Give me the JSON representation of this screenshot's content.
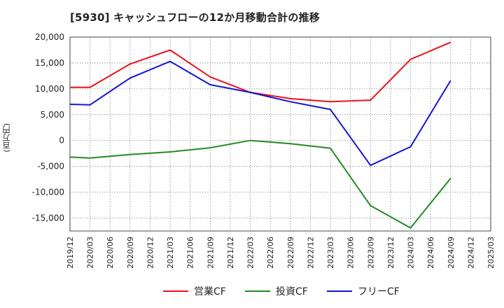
{
  "title": "[5930]  キャッシュフローの12か月移動合計の推移",
  "unit_label": "(百万円)",
  "chart_data": {
    "type": "line",
    "title": "[5930]  キャッシュフローの12か月移動合計の推移",
    "ylabel": "(百万円)",
    "xlabel": "",
    "ylim": [
      -17500,
      20000
    ],
    "yticks": [
      20000,
      15000,
      10000,
      5000,
      0,
      -5000,
      -10000,
      -15000
    ],
    "ytick_labels": [
      "20,000",
      "15,000",
      "10,000",
      "5,000",
      "0",
      "-5,000",
      "-10,000",
      "-15,000"
    ],
    "categories": [
      "2019/12",
      "2020/03",
      "2020/06",
      "2020/09",
      "2020/12",
      "2021/03",
      "2021/06",
      "2021/09",
      "2021/12",
      "2022/03",
      "2022/06",
      "2022/09",
      "2022/12",
      "2023/03",
      "2023/06",
      "2023/09",
      "2023/12",
      "2024/03",
      "2024/06",
      "2024/09",
      "2024/12",
      "2025/03"
    ],
    "grid": true,
    "legend_position": "bottom",
    "series": [
      {
        "name": "営業CF",
        "color": "#e8131a",
        "values": [
          10300,
          10300,
          null,
          14800,
          null,
          17500,
          null,
          12300,
          null,
          9300,
          null,
          8100,
          null,
          7500,
          null,
          7800,
          null,
          15700,
          null,
          19000,
          null,
          null
        ]
      },
      {
        "name": "投資CF",
        "color": "#238b23",
        "values": [
          -3200,
          -3400,
          null,
          -2700,
          null,
          -2200,
          null,
          -1400,
          null,
          0,
          null,
          -600,
          null,
          -1500,
          null,
          -12600,
          null,
          -16900,
          null,
          -7300,
          null,
          null
        ]
      },
      {
        "name": "フリーCF",
        "color": "#1515d0",
        "values": [
          7000,
          6900,
          null,
          12100,
          null,
          15300,
          null,
          10800,
          null,
          9300,
          null,
          7500,
          null,
          6000,
          null,
          -4800,
          null,
          -1200,
          null,
          11600,
          null,
          null
        ]
      }
    ]
  }
}
